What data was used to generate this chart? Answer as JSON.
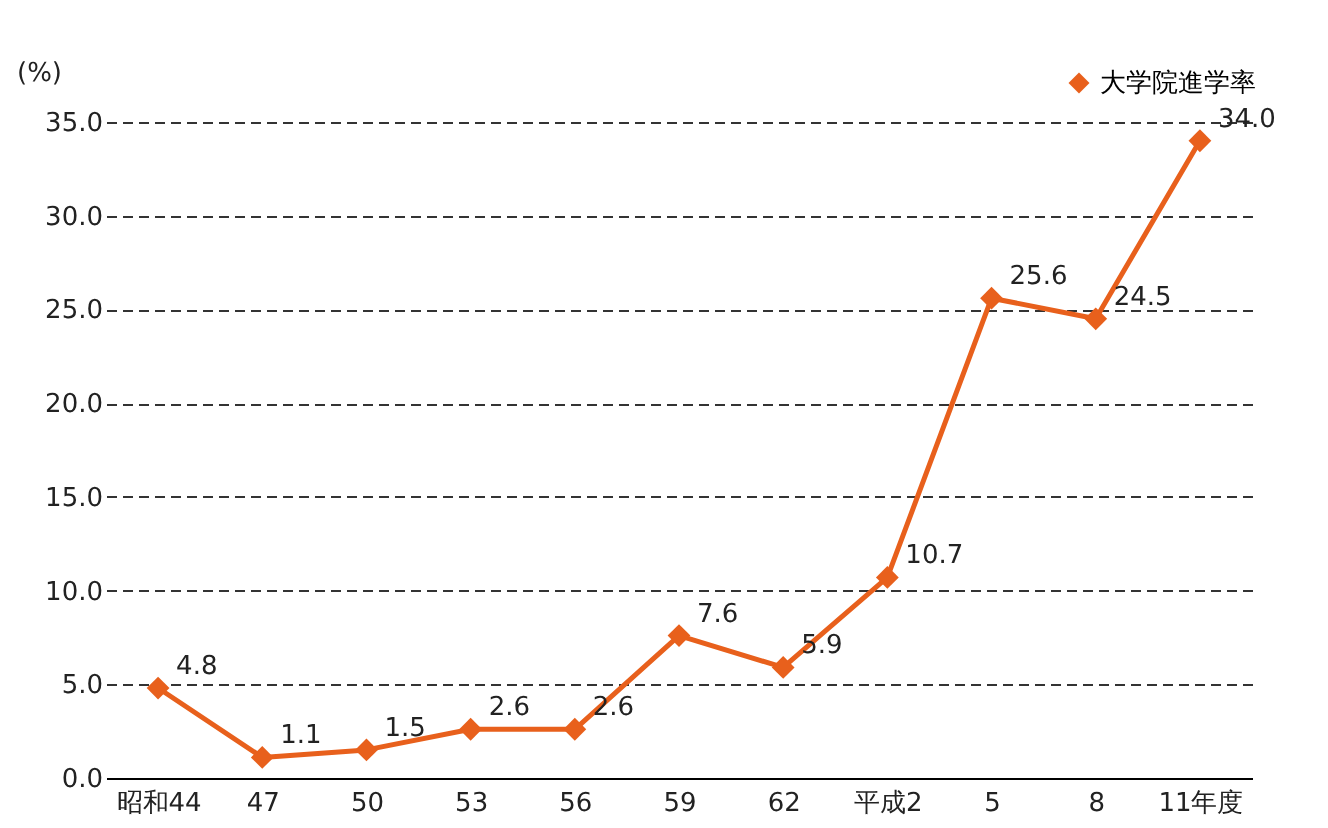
{
  "chart_data": {
    "type": "line",
    "ylabel": "(%)",
    "categories": [
      "昭和44",
      "47",
      "50",
      "53",
      "56",
      "59",
      "62",
      "平成2",
      "5",
      "8",
      "11年度"
    ],
    "series": [
      {
        "name": "大学院進学率",
        "color": "#e8601c",
        "values": [
          4.8,
          1.1,
          1.5,
          2.6,
          2.6,
          7.6,
          5.9,
          10.7,
          25.6,
          24.5,
          34.0
        ],
        "value_labels": [
          "4.8",
          "1.1",
          "1.5",
          "2.6",
          "2.6",
          "7.6",
          "5.9",
          "10.7",
          "25.6",
          "24.5",
          "34.0"
        ]
      }
    ],
    "ylim": [
      0,
      35
    ],
    "yticks": [
      {
        "value": 0,
        "label": "0.0"
      },
      {
        "value": 5,
        "label": "5.0"
      },
      {
        "value": 10,
        "label": "10.0"
      },
      {
        "value": 15,
        "label": "15.0"
      },
      {
        "value": 20,
        "label": "20.0"
      },
      {
        "value": 25,
        "label": "25.0"
      },
      {
        "value": 30,
        "label": "30.0"
      },
      {
        "value": 35,
        "label": "35.0"
      }
    ],
    "grid": "y",
    "legend": "top right",
    "marker": "diamond",
    "line_style": "solid"
  }
}
